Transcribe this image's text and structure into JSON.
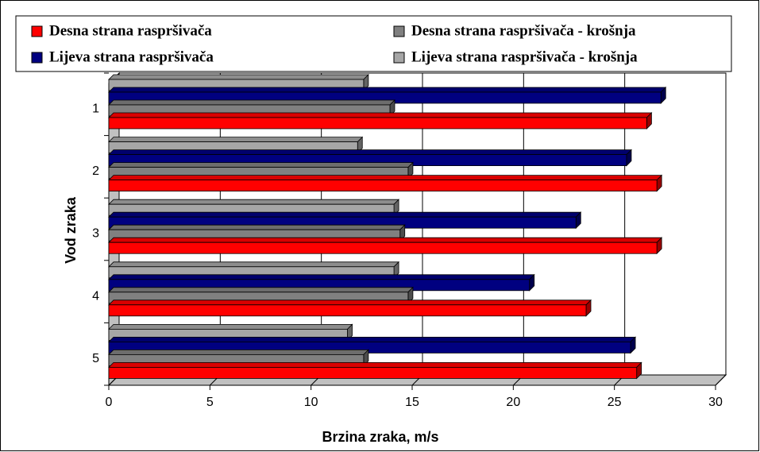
{
  "chart_data": {
    "type": "bar",
    "orientation": "horizontal",
    "categories": [
      "1",
      "2",
      "3",
      "4",
      "5"
    ],
    "series": [
      {
        "name": "Desna strana raspršivača",
        "color": "#ff0000",
        "values": [
          26.6,
          27.1,
          27.1,
          23.6,
          26.1
        ]
      },
      {
        "name": "Desna strana raspršivača - krošnja",
        "color": "#808080",
        "values": [
          13.9,
          14.8,
          14.4,
          14.8,
          12.6
        ]
      },
      {
        "name": "Lijeva strana raspršivača",
        "color": "#000080",
        "values": [
          27.3,
          25.6,
          23.1,
          20.8,
          25.8
        ]
      },
      {
        "name": "Lijeva strana raspršivača - krošnja",
        "color": "#a6a6a6",
        "values": [
          12.6,
          12.3,
          14.1,
          14.1,
          11.8
        ]
      }
    ],
    "xlabel": "Brzina zraka, m/s",
    "ylabel": "Vod zraka",
    "xlim": [
      0,
      30
    ],
    "xticks": [
      0,
      5,
      10,
      15,
      20,
      25,
      30
    ],
    "grid": true
  }
}
